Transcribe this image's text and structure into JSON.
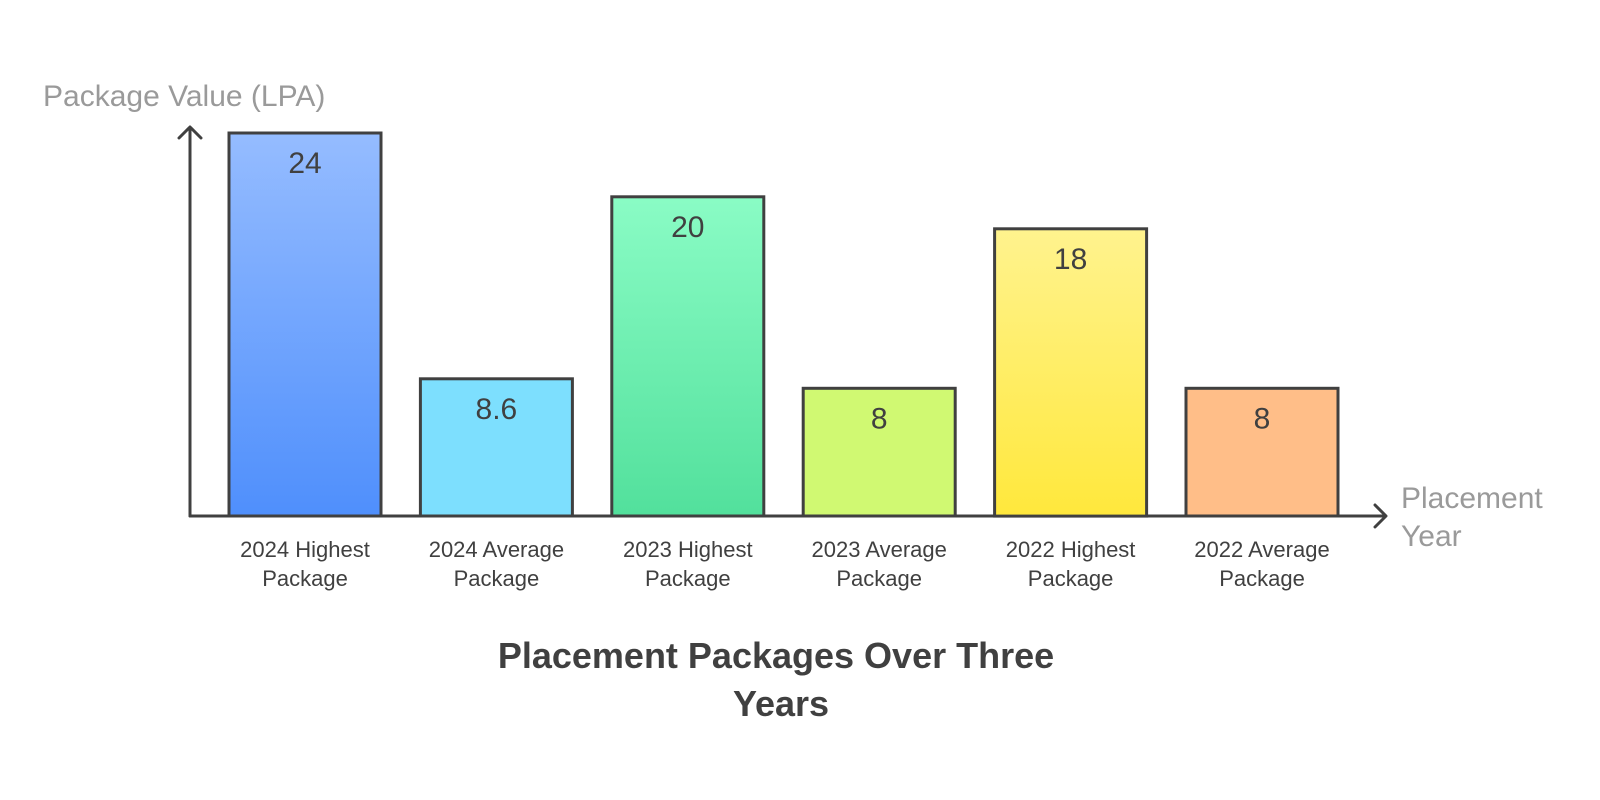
{
  "chart_data": {
    "type": "bar",
    "title_lines": [
      "Placement Packages Over Three",
      "Years"
    ],
    "ylabel": "Package Value (LPA)",
    "xlabel_lines": [
      "Placement",
      "Year"
    ],
    "ylim": [
      0,
      24
    ],
    "grid": false,
    "legend": "none",
    "categories": [
      [
        "2024 Highest",
        "Package"
      ],
      [
        "2024 Average",
        "Package"
      ],
      [
        "2023 Highest",
        "Package"
      ],
      [
        "2023 Average",
        "Package"
      ],
      [
        "2022 Highest",
        "Package"
      ],
      [
        "2022 Average",
        "Package"
      ]
    ],
    "values": [
      24,
      8.6,
      20,
      8,
      18,
      8
    ],
    "value_labels": [
      "24",
      "8.6",
      "20",
      "8",
      "18",
      "8"
    ],
    "colors": [
      [
        "#4f8ffc",
        "#95bcff"
      ],
      [
        "#7ddffe",
        "#7ddffe"
      ],
      [
        "#52e09c",
        "#8afcc5"
      ],
      [
        "#d0f972",
        "#d0f972"
      ],
      [
        "#ffe83c",
        "#fff38e"
      ],
      [
        "#ffbe88",
        "#ffbe88"
      ]
    ]
  }
}
